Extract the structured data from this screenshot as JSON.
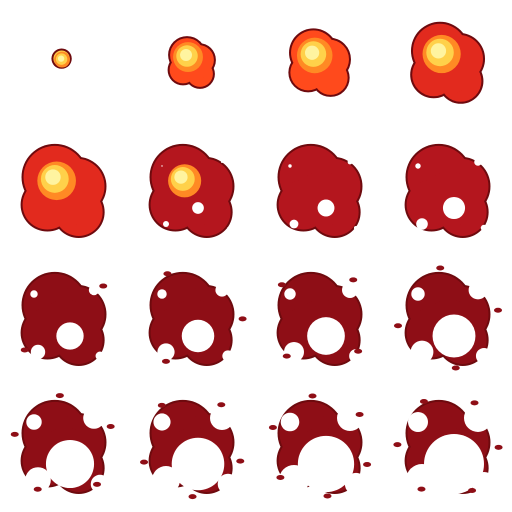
{
  "sprite_sheet": {
    "grid": {
      "rows": 4,
      "cols": 4
    },
    "colors": {
      "outline": "#6e0a0e",
      "core_light": "#fff4a0",
      "core": "#ffd14a",
      "hot": "#ff8a24",
      "warm": "#ff4a1c",
      "red": "#e22a1e",
      "dark_red": "#b4161e",
      "darker": "#8e0e16"
    },
    "frames": [
      {
        "stage": 0.0
      },
      {
        "stage": 0.07
      },
      {
        "stage": 0.14
      },
      {
        "stage": 0.21
      },
      {
        "stage": 0.28
      },
      {
        "stage": 0.35
      },
      {
        "stage": 0.42
      },
      {
        "stage": 0.49
      },
      {
        "stage": 0.56
      },
      {
        "stage": 0.63
      },
      {
        "stage": 0.7
      },
      {
        "stage": 0.77
      },
      {
        "stage": 0.84
      },
      {
        "stage": 0.9
      },
      {
        "stage": 0.95
      },
      {
        "stage": 1.0
      }
    ]
  }
}
